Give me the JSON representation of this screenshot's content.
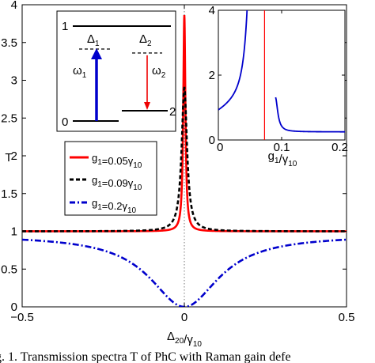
{
  "chart_data": [
    {
      "type": "line",
      "xlabel": "Δ20/γ10",
      "ylabel": "T",
      "xlim": [
        -0.5,
        0.5
      ],
      "ylim": [
        0,
        4
      ],
      "xticks": [
        "−0.5",
        "0",
        "0.5"
      ],
      "yticks": [
        "0",
        "0.5",
        "1",
        "1.5",
        "2",
        "2.5",
        "3",
        "3.5",
        "4"
      ],
      "grid": "dotted line at x = 0",
      "legend_position": "left, middle",
      "series": [
        {
          "name": "g1=0.05γ10",
          "color": "#ff0000",
          "style": "solid",
          "peak": {
            "x": 0,
            "y": 3.85
          },
          "baseline": 1.0,
          "width_hwhm": 0.004
        },
        {
          "name": "g1=0.09γ10",
          "color": "#000000",
          "style": "dashed",
          "peak": {
            "x": 0,
            "y": 2.9
          },
          "baseline": 1.0,
          "width_hwhm": 0.01
        },
        {
          "name": "g1=0.2γ10",
          "color": "#0000cc",
          "style": "dash-dot",
          "dip": {
            "x": 0,
            "y": 0.0
          },
          "edge_value": 0.95,
          "width_hwhm": 0.13
        }
      ]
    },
    {
      "type": "line",
      "xlabel": "g1/γ10",
      "xlim": [
        0,
        0.2
      ],
      "ylim": [
        0,
        4
      ],
      "xticks": [
        "0",
        "0.1",
        "0.2"
      ],
      "yticks": [
        "0",
        "2",
        "4"
      ],
      "series": [
        {
          "color": "#0000cc",
          "style": "solid",
          "pole_region": [
            0.055,
            0.09
          ],
          "end_value": 0.25
        },
        {
          "color": "#ff0000",
          "style": "solid",
          "vertical_at_x": 0.073
        }
      ]
    }
  ],
  "level_diagram": {
    "levels": [
      "1",
      "0",
      "2"
    ],
    "detunings": [
      "Δ1",
      "Δ2"
    ],
    "transitions": [
      "ω1",
      "ω2"
    ]
  },
  "caption": "g. 1.   Transmission spectra T of PhC with Raman gain defe"
}
